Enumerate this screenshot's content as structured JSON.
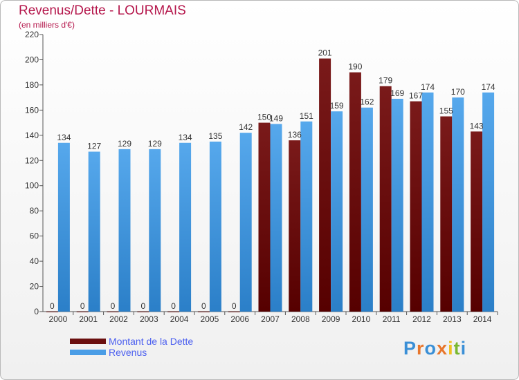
{
  "title": "Revenus/Dette - LOURMAIS",
  "subtitle": "(en milliers d'€)",
  "colors": {
    "dette": "#7a1a1a",
    "dette_dark": "#560000",
    "revenus": "#56a8ec",
    "revenus_dark": "#2b7fc8",
    "axis": "#555555",
    "grid": "#dddddd",
    "title": "#b5174c"
  },
  "chart_data": {
    "type": "bar",
    "title": "Revenus/Dette - LOURMAIS",
    "subtitle": "(en milliers d'€)",
    "xlabel": "",
    "ylabel": "",
    "ylim": [
      0,
      220
    ],
    "yticks": [
      0,
      20,
      40,
      60,
      80,
      100,
      120,
      140,
      160,
      180,
      200,
      220
    ],
    "grid": false,
    "legend_position": "bottom-left",
    "categories": [
      "2000",
      "2001",
      "2002",
      "2003",
      "2004",
      "2005",
      "2006",
      "2007",
      "2008",
      "2009",
      "2010",
      "2011",
      "2012",
      "2013",
      "2014"
    ],
    "series": [
      {
        "name": "Montant de la Dette",
        "values": [
          0,
          0,
          0,
          0,
          0,
          0,
          0,
          150,
          136,
          201,
          190,
          179,
          167,
          155,
          143
        ]
      },
      {
        "name": "Revenus",
        "values": [
          134,
          127,
          129,
          129,
          134,
          135,
          142,
          149,
          151,
          159,
          162,
          169,
          174,
          170,
          174
        ]
      }
    ]
  },
  "logo": {
    "text": "Proxiti",
    "letter_colors": [
      "#3a8fd6",
      "#e8762c",
      "#3a8fd6",
      "#e8762c",
      "#f0c020",
      "#7ab830",
      "#3a8fd6"
    ]
  }
}
